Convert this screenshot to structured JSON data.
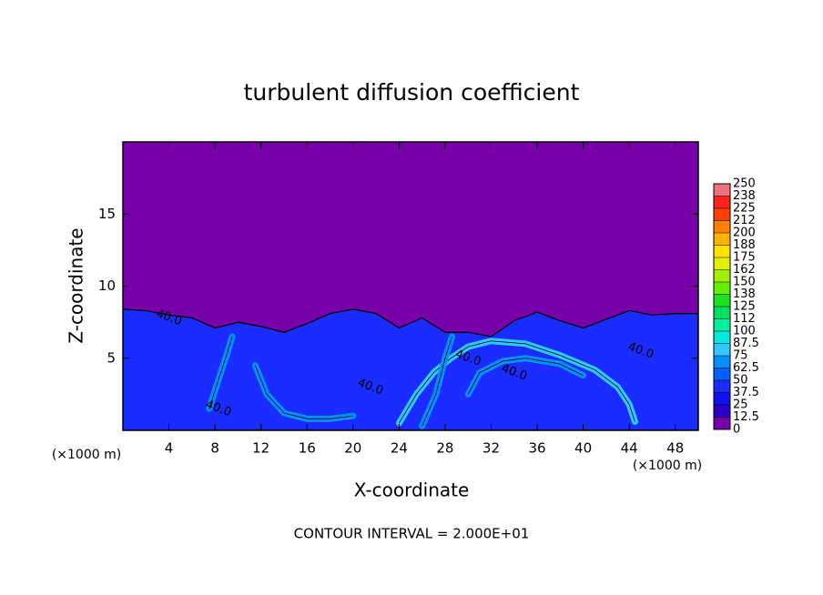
{
  "chart_data": {
    "type": "contour",
    "title": "turbulent diffusion coefficient",
    "xlabel": "X-coordinate",
    "ylabel": "Z-coordinate",
    "x_unit": "(×1000 m)",
    "footer": "CONTOUR INTERVAL = 2.000E+01",
    "xlim": [
      0,
      50
    ],
    "ylim": [
      0,
      20
    ],
    "xticks": [
      4,
      8,
      12,
      16,
      20,
      24,
      28,
      32,
      36,
      40,
      44,
      48
    ],
    "yticks": [
      5,
      10,
      15
    ],
    "colorbar": {
      "ticks": [
        0,
        12.5,
        25,
        37.5,
        50,
        62.5,
        75,
        87.5,
        100,
        {
          "value": 112.5,
          "label": "112"
        },
        125,
        {
          "value": 137.5,
          "label": "138"
        },
        150,
        {
          "value": 162.5,
          "label": "162"
        },
        175,
        {
          "value": 187.5,
          "label": "188"
        },
        200,
        {
          "value": 212.5,
          "label": "212"
        },
        225,
        {
          "value": 237.5,
          "label": "238"
        },
        250
      ],
      "colors": [
        "#7800a8",
        "#2800c8",
        "#1010f0",
        "#1a2cff",
        "#0060ff",
        "#0090ff",
        "#30c8ff",
        "#00e8e0",
        "#00f0a0",
        "#00e060",
        "#20e020",
        "#60f000",
        "#a0f000",
        "#e0f000",
        "#ffe000",
        "#ffb000",
        "#ff8000",
        "#ff4000",
        "#ff2020",
        "#f07080"
      ]
    },
    "field": {
      "background": 0,
      "layer": {
        "value": 37.5,
        "x": [
          0,
          2,
          4,
          6,
          8,
          10,
          12,
          14,
          16,
          18,
          20,
          22,
          24,
          26,
          28,
          30,
          32,
          34,
          36,
          38,
          40,
          42,
          44,
          46,
          48,
          50
        ],
        "top": [
          8.4,
          8.3,
          8.0,
          7.8,
          7.1,
          7.5,
          7.2,
          6.8,
          7.4,
          8.1,
          8.4,
          8.1,
          7.1,
          7.8,
          6.8,
          6.8,
          6.5,
          7.6,
          8.2,
          7.6,
          7.1,
          7.7,
          8.3,
          8.0,
          8.1,
          8.1
        ]
      },
      "streaks": [
        {
          "value": 75,
          "x": [
            24,
            25.5,
            27,
            28.5,
            30,
            32,
            35,
            38,
            41,
            43,
            44,
            44.5
          ],
          "z": [
            0.5,
            2.5,
            4,
            5,
            5.8,
            6.2,
            6.0,
            5.2,
            4.2,
            3.0,
            1.8,
            0.6
          ]
        },
        {
          "value": 62.5,
          "x": [
            11.5,
            12.5,
            14,
            16,
            18,
            20
          ],
          "z": [
            4.5,
            2.5,
            1.2,
            0.8,
            0.8,
            1.0
          ]
        },
        {
          "value": 62.5,
          "x": [
            7.5,
            8.3,
            9,
            9.5
          ],
          "z": [
            1.5,
            3.5,
            5.2,
            6.5
          ]
        },
        {
          "value": 62.5,
          "x": [
            26,
            27.2,
            28,
            28.6
          ],
          "z": [
            0.3,
            2.5,
            5.0,
            6.5
          ]
        },
        {
          "value": 62.5,
          "x": [
            30,
            31,
            33,
            35,
            38,
            40
          ],
          "z": [
            2.5,
            4.0,
            4.8,
            5.0,
            4.6,
            3.8
          ]
        }
      ]
    },
    "annotations": [
      {
        "text": "40.0",
        "x": 4,
        "z": 7.8
      },
      {
        "text": "40.0",
        "x": 8.3,
        "z": 1.5
      },
      {
        "text": "40.0",
        "x": 21.5,
        "z": 3
      },
      {
        "text": "40.0",
        "x": 30,
        "z": 5
      },
      {
        "text": "40.0",
        "x": 34,
        "z": 4
      },
      {
        "text": "40.0",
        "x": 45,
        "z": 5.5
      }
    ]
  }
}
